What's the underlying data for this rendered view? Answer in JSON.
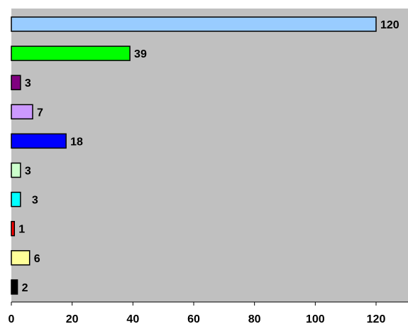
{
  "chart_data": {
    "type": "bar",
    "orientation": "horizontal",
    "categories": [
      "",
      "",
      "",
      "",
      "",
      "",
      "",
      "",
      "",
      ""
    ],
    "values": [
      120,
      39,
      3,
      7,
      18,
      3,
      3,
      1,
      6,
      2
    ],
    "data_labels": [
      "120",
      "39",
      "3",
      "7",
      "18",
      "3",
      "3",
      "1",
      "6",
      "2"
    ],
    "bar_colors": [
      "#99ccff",
      "#00ff00",
      "#800080",
      "#cc99ff",
      "#0000ff",
      "#ccffcc",
      "#00ffff",
      "#ff0000",
      "#ffff99",
      "#000000"
    ],
    "xlim": [
      0,
      130
    ],
    "x_ticks": [
      0,
      20,
      40,
      60,
      80,
      100,
      120
    ],
    "x_tick_labels": [
      "0",
      "20",
      "40",
      "60",
      "80",
      "100",
      "120"
    ],
    "title": "",
    "xlabel": "",
    "ylabel": "",
    "grid": false,
    "legend": "none",
    "plot_background": "#c0c0c0"
  }
}
